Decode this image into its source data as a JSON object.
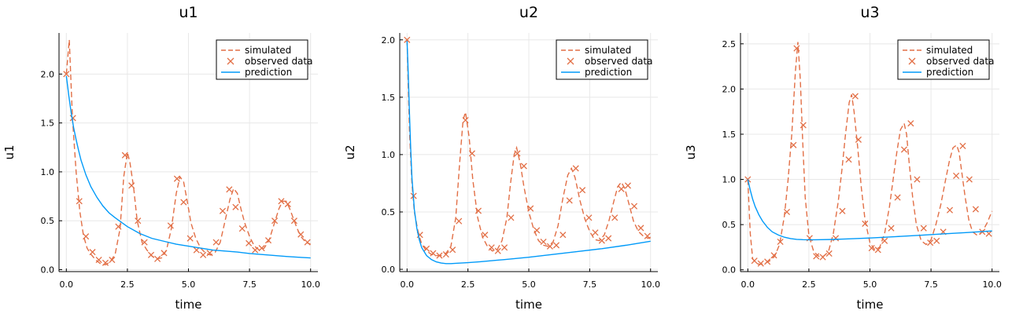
{
  "colors": {
    "simulated": "#e26f46",
    "observed": "#e26f46",
    "prediction": "#009af9",
    "grid": "#e8e8e8",
    "axis": "#000000"
  },
  "legend": {
    "placement": "top-right",
    "labels": [
      "simulated",
      "observed data",
      "prediction"
    ]
  },
  "chart_data": [
    {
      "type": "line",
      "title": "u1",
      "xlabel": "time",
      "ylabel": "u1",
      "xlim": [
        -0.3,
        10.3
      ],
      "ylim": [
        -0.02,
        2.42
      ],
      "xticks": [
        0.0,
        2.5,
        5.0,
        7.5,
        10.0
      ],
      "xtick_labels": [
        "0.0",
        "2.5",
        "5.0",
        "7.5",
        "10.0"
      ],
      "yticks": [
        0.0,
        0.5,
        1.0,
        1.5,
        2.0
      ],
      "ytick_labels": [
        "0.0",
        "0.5",
        "1.0",
        "1.5",
        "2.0"
      ],
      "grid": true,
      "series": [
        {
          "name": "simulated",
          "style": "dashed",
          "x": [
            0.0,
            0.12,
            0.25,
            0.4,
            0.55,
            0.7,
            0.85,
            1.0,
            1.2,
            1.4,
            1.6,
            1.8,
            2.0,
            2.2,
            2.35,
            2.5,
            2.6,
            2.75,
            2.9,
            3.1,
            3.3,
            3.5,
            3.7,
            3.9,
            4.1,
            4.3,
            4.5,
            4.65,
            4.8,
            4.95,
            5.1,
            5.3,
            5.5,
            5.7,
            5.9,
            6.1,
            6.3,
            6.5,
            6.7,
            6.85,
            7.0,
            7.15,
            7.3,
            7.5,
            7.7,
            7.9,
            8.1,
            8.3,
            8.5,
            8.7,
            8.85,
            9.0,
            9.15,
            9.3,
            9.45,
            9.6,
            9.8,
            10.0
          ],
          "y": [
            2.0,
            2.35,
            1.55,
            1.0,
            0.6,
            0.35,
            0.22,
            0.16,
            0.1,
            0.06,
            0.05,
            0.08,
            0.16,
            0.42,
            0.95,
            1.2,
            1.1,
            0.85,
            0.5,
            0.28,
            0.2,
            0.14,
            0.11,
            0.12,
            0.2,
            0.42,
            0.78,
            0.95,
            0.9,
            0.7,
            0.48,
            0.32,
            0.22,
            0.17,
            0.15,
            0.18,
            0.28,
            0.5,
            0.72,
            0.83,
            0.78,
            0.62,
            0.48,
            0.34,
            0.24,
            0.2,
            0.22,
            0.3,
            0.46,
            0.62,
            0.7,
            0.7,
            0.62,
            0.52,
            0.42,
            0.34,
            0.28,
            0.26
          ]
        },
        {
          "name": "observed data",
          "style": "markers",
          "x": [
            0.0,
            0.27,
            0.53,
            0.8,
            1.07,
            1.33,
            1.6,
            1.87,
            2.13,
            2.4,
            2.67,
            2.93,
            3.2,
            3.47,
            3.73,
            4.0,
            4.27,
            4.53,
            4.8,
            5.07,
            5.33,
            5.6,
            5.87,
            6.13,
            6.4,
            6.67,
            6.93,
            7.2,
            7.47,
            7.73,
            8.0,
            8.27,
            8.53,
            8.8,
            9.07,
            9.33,
            9.6,
            9.87
          ],
          "y": [
            2.0,
            1.55,
            0.7,
            0.34,
            0.18,
            0.1,
            0.07,
            0.1,
            0.44,
            1.17,
            0.86,
            0.5,
            0.28,
            0.15,
            0.11,
            0.17,
            0.45,
            0.93,
            0.69,
            0.32,
            0.2,
            0.15,
            0.17,
            0.28,
            0.6,
            0.82,
            0.64,
            0.42,
            0.27,
            0.2,
            0.22,
            0.3,
            0.5,
            0.7,
            0.67,
            0.5,
            0.36,
            0.28
          ]
        },
        {
          "name": "prediction",
          "style": "solid",
          "x": [
            0.0,
            0.1,
            0.2,
            0.3,
            0.4,
            0.5,
            0.6,
            0.8,
            1.0,
            1.25,
            1.5,
            1.75,
            2.0,
            2.5,
            3.0,
            3.5,
            4.0,
            4.5,
            5.0,
            5.5,
            6.0,
            6.5,
            7.0,
            7.5,
            8.0,
            8.5,
            9.0,
            9.5,
            10.0
          ],
          "y": [
            1.98,
            1.78,
            1.6,
            1.45,
            1.33,
            1.22,
            1.12,
            0.97,
            0.85,
            0.74,
            0.65,
            0.58,
            0.53,
            0.44,
            0.37,
            0.32,
            0.29,
            0.26,
            0.24,
            0.22,
            0.2,
            0.19,
            0.18,
            0.165,
            0.155,
            0.145,
            0.135,
            0.127,
            0.12
          ]
        }
      ]
    },
    {
      "type": "line",
      "title": "u2",
      "xlabel": "time",
      "ylabel": "u2",
      "xlim": [
        -0.3,
        10.3
      ],
      "ylim": [
        -0.02,
        2.06
      ],
      "xticks": [
        0.0,
        2.5,
        5.0,
        7.5,
        10.0
      ],
      "xtick_labels": [
        "0.0",
        "2.5",
        "5.0",
        "7.5",
        "10.0"
      ],
      "yticks": [
        0.0,
        0.5,
        1.0,
        1.5,
        2.0
      ],
      "ytick_labels": [
        "0.0",
        "0.5",
        "1.0",
        "1.5",
        "2.0"
      ],
      "grid": true,
      "series": [
        {
          "name": "simulated",
          "style": "dashed",
          "x": [
            0.0,
            0.1,
            0.2,
            0.3,
            0.45,
            0.6,
            0.8,
            1.0,
            1.2,
            1.4,
            1.6,
            1.8,
            2.0,
            2.15,
            2.3,
            2.4,
            2.55,
            2.7,
            2.9,
            3.1,
            3.3,
            3.5,
            3.7,
            3.9,
            4.1,
            4.25,
            4.4,
            4.5,
            4.65,
            4.8,
            5.0,
            5.2,
            5.4,
            5.6,
            5.8,
            6.0,
            6.2,
            6.4,
            6.6,
            6.75,
            6.9,
            7.1,
            7.3,
            7.5,
            7.7,
            7.9,
            8.1,
            8.3,
            8.5,
            8.65,
            8.8,
            8.95,
            9.1,
            9.3,
            9.5,
            9.7,
            9.9,
            10.0
          ],
          "y": [
            2.0,
            1.2,
            0.75,
            0.5,
            0.33,
            0.22,
            0.16,
            0.13,
            0.12,
            0.12,
            0.14,
            0.2,
            0.45,
            0.9,
            1.3,
            1.37,
            1.15,
            0.78,
            0.45,
            0.28,
            0.2,
            0.16,
            0.17,
            0.25,
            0.45,
            0.75,
            1.0,
            1.06,
            0.92,
            0.72,
            0.5,
            0.35,
            0.25,
            0.21,
            0.2,
            0.24,
            0.38,
            0.62,
            0.82,
            0.88,
            0.8,
            0.6,
            0.44,
            0.33,
            0.26,
            0.25,
            0.3,
            0.43,
            0.6,
            0.72,
            0.76,
            0.7,
            0.58,
            0.42,
            0.33,
            0.29,
            0.27,
            0.28
          ]
        },
        {
          "name": "observed data",
          "style": "markers",
          "x": [
            0.0,
            0.27,
            0.53,
            0.8,
            1.07,
            1.33,
            1.6,
            1.87,
            2.13,
            2.4,
            2.67,
            2.93,
            3.2,
            3.47,
            3.73,
            4.0,
            4.27,
            4.53,
            4.8,
            5.07,
            5.33,
            5.6,
            5.87,
            6.13,
            6.4,
            6.67,
            6.93,
            7.2,
            7.47,
            7.73,
            8.0,
            8.27,
            8.53,
            8.8,
            9.07,
            9.33,
            9.6,
            9.87
          ],
          "y": [
            2.0,
            0.64,
            0.3,
            0.18,
            0.14,
            0.12,
            0.13,
            0.17,
            0.42,
            1.3,
            1.01,
            0.51,
            0.3,
            0.19,
            0.16,
            0.19,
            0.45,
            1.01,
            0.9,
            0.53,
            0.34,
            0.24,
            0.2,
            0.21,
            0.3,
            0.6,
            0.88,
            0.69,
            0.45,
            0.32,
            0.25,
            0.27,
            0.45,
            0.7,
            0.73,
            0.55,
            0.36,
            0.29
          ]
        },
        {
          "name": "prediction",
          "style": "solid",
          "x": [
            0.0,
            0.05,
            0.1,
            0.15,
            0.2,
            0.3,
            0.4,
            0.5,
            0.6,
            0.8,
            1.0,
            1.2,
            1.4,
            1.6,
            1.8,
            2.0,
            2.5,
            3.0,
            4.0,
            5.0,
            6.0,
            7.0,
            8.0,
            9.0,
            10.0
          ],
          "y": [
            1.99,
            1.7,
            1.35,
            1.05,
            0.8,
            0.52,
            0.36,
            0.26,
            0.19,
            0.12,
            0.085,
            0.065,
            0.055,
            0.05,
            0.05,
            0.052,
            0.058,
            0.066,
            0.085,
            0.105,
            0.13,
            0.155,
            0.18,
            0.21,
            0.245
          ]
        }
      ]
    },
    {
      "type": "line",
      "title": "u3",
      "xlabel": "time",
      "ylabel": "u3",
      "xlim": [
        -0.3,
        10.3
      ],
      "ylim": [
        -0.02,
        2.62
      ],
      "xticks": [
        0.0,
        2.5,
        5.0,
        7.5,
        10.0
      ],
      "xtick_labels": [
        "0.0",
        "2.5",
        "5.0",
        "7.5",
        "10.0"
      ],
      "yticks": [
        0.0,
        0.5,
        1.0,
        1.5,
        2.0,
        2.5
      ],
      "ytick_labels": [
        "0.0",
        "0.5",
        "1.0",
        "1.5",
        "2.0",
        "2.5"
      ],
      "grid": true,
      "series": [
        {
          "name": "simulated",
          "style": "dashed",
          "x": [
            0.0,
            0.1,
            0.2,
            0.35,
            0.5,
            0.7,
            0.9,
            1.1,
            1.3,
            1.5,
            1.65,
            1.8,
            1.95,
            2.05,
            2.15,
            2.25,
            2.35,
            2.5,
            2.7,
            2.9,
            3.1,
            3.3,
            3.5,
            3.7,
            3.85,
            4.0,
            4.15,
            4.25,
            4.35,
            4.5,
            4.65,
            4.8,
            5.0,
            5.2,
            5.4,
            5.6,
            5.8,
            5.95,
            6.1,
            6.25,
            6.4,
            6.5,
            6.6,
            6.75,
            6.9,
            7.1,
            7.3,
            7.5,
            7.7,
            7.9,
            8.1,
            8.25,
            8.4,
            8.55,
            8.65,
            8.75,
            8.9,
            9.05,
            9.2,
            9.4,
            9.6,
            9.8,
            10.0
          ],
          "y": [
            1.0,
            0.4,
            0.12,
            0.07,
            0.06,
            0.07,
            0.1,
            0.15,
            0.28,
            0.6,
            1.0,
            1.5,
            2.2,
            2.52,
            2.1,
            1.4,
            0.8,
            0.38,
            0.2,
            0.15,
            0.15,
            0.2,
            0.4,
            0.75,
            1.1,
            1.5,
            1.85,
            1.94,
            1.75,
            1.35,
            0.9,
            0.55,
            0.3,
            0.22,
            0.25,
            0.4,
            0.7,
            1.0,
            1.3,
            1.55,
            1.62,
            1.5,
            1.2,
            0.8,
            0.5,
            0.32,
            0.28,
            0.33,
            0.5,
            0.72,
            1.0,
            1.2,
            1.35,
            1.38,
            1.3,
            1.1,
            0.8,
            0.55,
            0.42,
            0.38,
            0.42,
            0.52,
            0.65
          ]
        },
        {
          "name": "observed data",
          "style": "markers",
          "x": [
            0.0,
            0.27,
            0.53,
            0.8,
            1.07,
            1.33,
            1.6,
            1.87,
            2.0,
            2.27,
            2.53,
            2.8,
            3.07,
            3.33,
            3.6,
            3.87,
            4.13,
            4.4,
            4.53,
            4.8,
            5.07,
            5.33,
            5.6,
            5.87,
            6.13,
            6.4,
            6.67,
            6.93,
            7.2,
            7.47,
            7.73,
            8.0,
            8.27,
            8.53,
            8.8,
            9.07,
            9.33,
            9.6,
            9.87
          ],
          "y": [
            1.0,
            0.1,
            0.07,
            0.09,
            0.16,
            0.31,
            0.64,
            1.38,
            2.45,
            1.6,
            0.35,
            0.15,
            0.14,
            0.18,
            0.35,
            0.65,
            1.22,
            1.92,
            1.44,
            0.51,
            0.24,
            0.22,
            0.32,
            0.46,
            0.8,
            1.33,
            1.62,
            1.0,
            0.46,
            0.3,
            0.32,
            0.42,
            0.66,
            1.04,
            1.37,
            1.0,
            0.67,
            0.42,
            0.4
          ]
        },
        {
          "name": "prediction",
          "style": "solid",
          "x": [
            0.0,
            0.1,
            0.2,
            0.3,
            0.45,
            0.6,
            0.8,
            1.0,
            1.25,
            1.5,
            1.75,
            2.0,
            2.25,
            2.5,
            2.75,
            3.0,
            3.5,
            4.0,
            5.0,
            6.0,
            7.0,
            8.0,
            9.0,
            10.0
          ],
          "y": [
            1.0,
            0.88,
            0.78,
            0.7,
            0.61,
            0.54,
            0.47,
            0.42,
            0.385,
            0.36,
            0.345,
            0.337,
            0.333,
            0.332,
            0.332,
            0.333,
            0.336,
            0.341,
            0.352,
            0.366,
            0.381,
            0.397,
            0.413,
            0.43
          ]
        }
      ]
    }
  ]
}
